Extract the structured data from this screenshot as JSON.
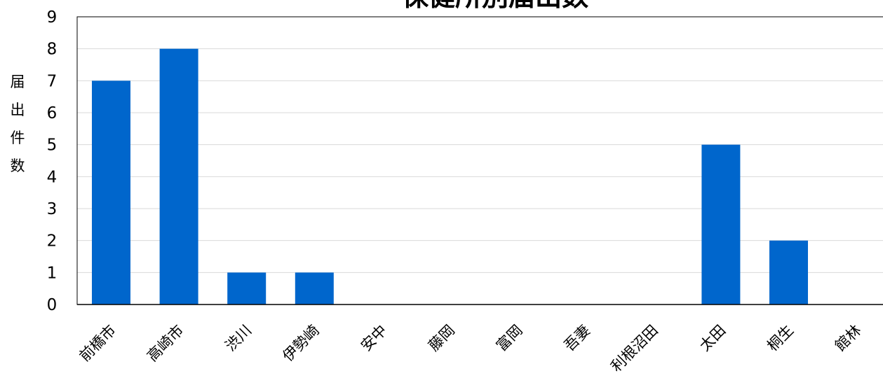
{
  "chart_data": {
    "type": "bar",
    "title": "保健所別届出数",
    "xlabel": "",
    "ylabel": "届出件数",
    "categories": [
      "前橋市",
      "高崎市",
      "渋川",
      "伊勢崎",
      "安中",
      "藤岡",
      "富岡",
      "吾妻",
      "利根沼田",
      "太田",
      "桐生",
      "館林"
    ],
    "values": [
      7,
      8,
      1,
      1,
      0,
      0,
      0,
      0,
      0,
      5,
      2,
      0
    ],
    "ylim": [
      0,
      9
    ],
    "yticks": [
      0,
      1,
      2,
      3,
      4,
      5,
      6,
      7,
      8,
      9
    ],
    "grid": true,
    "bar_color": "#0066cc"
  }
}
